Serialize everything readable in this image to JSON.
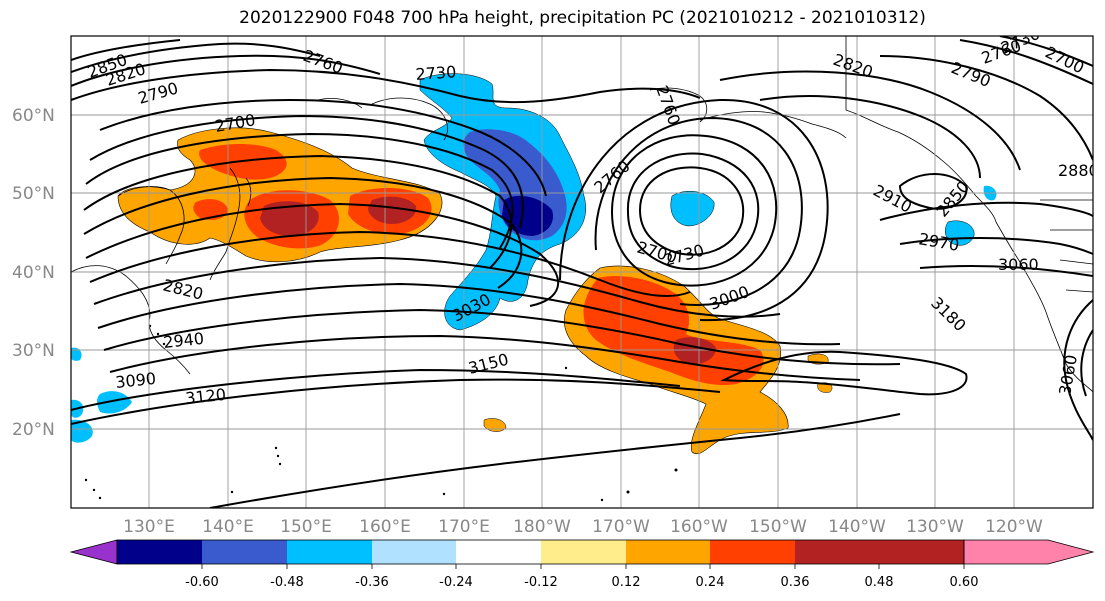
{
  "title": "2020122900 F048 700 hPa height, precipitation PC (2021010212 - 2021010312)",
  "lat_labels": [
    "60°N",
    "50°N",
    "40°N",
    "30°N",
    "20°N"
  ],
  "lon_labels": [
    "130°E",
    "140°E",
    "150°E",
    "160°E",
    "170°E",
    "180°W",
    "170°W",
    "160°W",
    "150°W",
    "140°W",
    "130°W",
    "120°W"
  ],
  "contour_labels": [
    "2850",
    "2820",
    "2790",
    "2760",
    "2730",
    "2700",
    "2760",
    "2820",
    "2790",
    "2760",
    "2730",
    "2700",
    "2880",
    "2910",
    "2850",
    "2970",
    "2760",
    "2700",
    "2730",
    "3060",
    "2820",
    "3030",
    "3000",
    "2940",
    "3180",
    "3150",
    "3090",
    "3120",
    "3060"
  ],
  "colorbar": {
    "ticks": [
      "-0.60",
      "-0.48",
      "-0.36",
      "-0.24",
      "-0.12",
      "0.12",
      "0.24",
      "0.36",
      "0.48",
      "0.60"
    ],
    "colors": [
      "#9932cc",
      "#00008b",
      "#3a5bcd",
      "#00bfff",
      "#b0e2ff",
      "#ffffff",
      "#ffec8b",
      "#ffa500",
      "#ff4000",
      "#b22222",
      "#ff82ab"
    ]
  }
}
